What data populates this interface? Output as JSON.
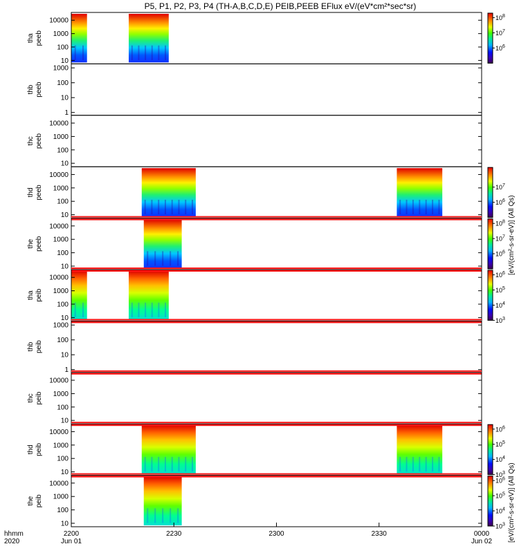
{
  "title": "P5, P1, P2, P3, P4 (TH-A,B,C,D,E) PEIB,PEEB EFlux eV/(eV*cm²*sec*sr)",
  "time_axis": {
    "row_label": "hhmm",
    "year_label": "2020",
    "ticks": [
      {
        "t": 0,
        "label": "2200",
        "date": "Jun 01"
      },
      {
        "t": 30,
        "label": "2230",
        "date": ""
      },
      {
        "t": 60,
        "label": "2300",
        "date": ""
      },
      {
        "t": 90,
        "label": "2330",
        "date": ""
      },
      {
        "t": 120,
        "label": "0000",
        "date": "Jun 02"
      }
    ],
    "range_minutes": [
      0,
      120
    ]
  },
  "colorbar_labels": {
    "electrons": "[eV/(cm²-s-sr-eV)] (All Qs)",
    "ions": "[eV/(cm²-s-sr-eV)] (All Qs)"
  },
  "chart_data": [
    {
      "type": "heatmap",
      "probe": "tha",
      "label1": "tha",
      "label2": "peeb",
      "yticks": [
        "10",
        "100",
        "1000",
        "10000"
      ],
      "ymin": 7,
      "ymax": 30000,
      "crange": [
        5,
        8.3
      ],
      "ctick_exp": [
        6,
        7,
        8
      ],
      "intervals": [
        [
          0,
          4.6
        ],
        [
          16.8,
          28.5
        ]
      ],
      "ephemeris_bar": false
    },
    {
      "type": "heatmap",
      "probe": "thb",
      "label1": "thb",
      "label2": "peeb",
      "yticks": [
        "1",
        "10",
        "100",
        "1000"
      ],
      "ymin": 0.8,
      "ymax": 1500,
      "crange": null,
      "ctick_exp": [],
      "intervals": [],
      "ephemeris_bar": false
    },
    {
      "type": "heatmap",
      "probe": "thc",
      "label1": "thc",
      "label2": "peeb",
      "yticks": [
        "10",
        "100",
        "1000",
        "10000"
      ],
      "ymin": 7,
      "ymax": 30000,
      "crange": null,
      "ctick_exp": [],
      "intervals": [],
      "ephemeris_bar": false
    },
    {
      "type": "heatmap",
      "probe": "thd",
      "label1": "thd",
      "label2": "peeb",
      "yticks": [
        "10",
        "100",
        "1000",
        "10000"
      ],
      "ymin": 7,
      "ymax": 30000,
      "crange": [
        5,
        8.3
      ],
      "ctick_exp": [
        6,
        7
      ],
      "intervals": [
        [
          20.6,
          36.4
        ],
        [
          95.2,
          108.5
        ]
      ],
      "ephemeris_bar": false
    },
    {
      "type": "heatmap",
      "probe": "the",
      "label1": "the",
      "label2": "peeb",
      "yticks": [
        "10",
        "100",
        "1000",
        "10000"
      ],
      "ymin": 7,
      "ymax": 30000,
      "crange": [
        5,
        8.3
      ],
      "ctick_exp": [
        6,
        7,
        8
      ],
      "intervals": [
        [
          21.2,
          32.3
        ]
      ],
      "ephemeris_bar": true
    },
    {
      "type": "heatmap",
      "probe": "tha",
      "label1": "tha",
      "label2": "peib",
      "yticks": [
        "10",
        "100",
        "1000",
        "10000"
      ],
      "ymin": 7,
      "ymax": 30000,
      "crange": [
        3,
        6.3
      ],
      "ctick_exp": [
        3,
        4,
        5,
        6
      ],
      "intervals": [
        [
          0,
          4.6
        ],
        [
          16.8,
          28.5
        ]
      ],
      "ephemeris_bar": true
    },
    {
      "type": "heatmap",
      "probe": "thb",
      "label1": "thb",
      "label2": "peib",
      "yticks": [
        "1",
        "10",
        "100",
        "1000"
      ],
      "ymin": 0.8,
      "ymax": 1500,
      "crange": null,
      "ctick_exp": [],
      "intervals": [],
      "ephemeris_bar": true
    },
    {
      "type": "heatmap",
      "probe": "thc",
      "label1": "thc",
      "label2": "peib",
      "yticks": [
        "10",
        "100",
        "1000",
        "10000"
      ],
      "ymin": 7,
      "ymax": 30000,
      "crange": null,
      "ctick_exp": [],
      "intervals": [],
      "ephemeris_bar": true
    },
    {
      "type": "heatmap",
      "probe": "thd",
      "label1": "thd",
      "label2": "peib",
      "yticks": [
        "10",
        "100",
        "1000",
        "10000"
      ],
      "ymin": 7,
      "ymax": 30000,
      "crange": [
        3,
        6.3
      ],
      "ctick_exp": [
        3,
        4,
        5,
        6
      ],
      "intervals": [
        [
          20.6,
          36.4
        ],
        [
          95.2,
          108.5
        ]
      ],
      "ephemeris_bar": true
    },
    {
      "type": "heatmap",
      "probe": "the",
      "label1": "the",
      "label2": "peib",
      "yticks": [
        "10",
        "100",
        "1000",
        "10000"
      ],
      "ymin": 7,
      "ymax": 30000,
      "crange": [
        3,
        6.3
      ],
      "ctick_exp": [
        3,
        4,
        5,
        6
      ],
      "intervals": [
        [
          21.2,
          32.3
        ]
      ],
      "ephemeris_bar": true
    }
  ],
  "ephemeris_bar_colors": {
    "main": "#ff1414",
    "marker": "#ffee00"
  }
}
